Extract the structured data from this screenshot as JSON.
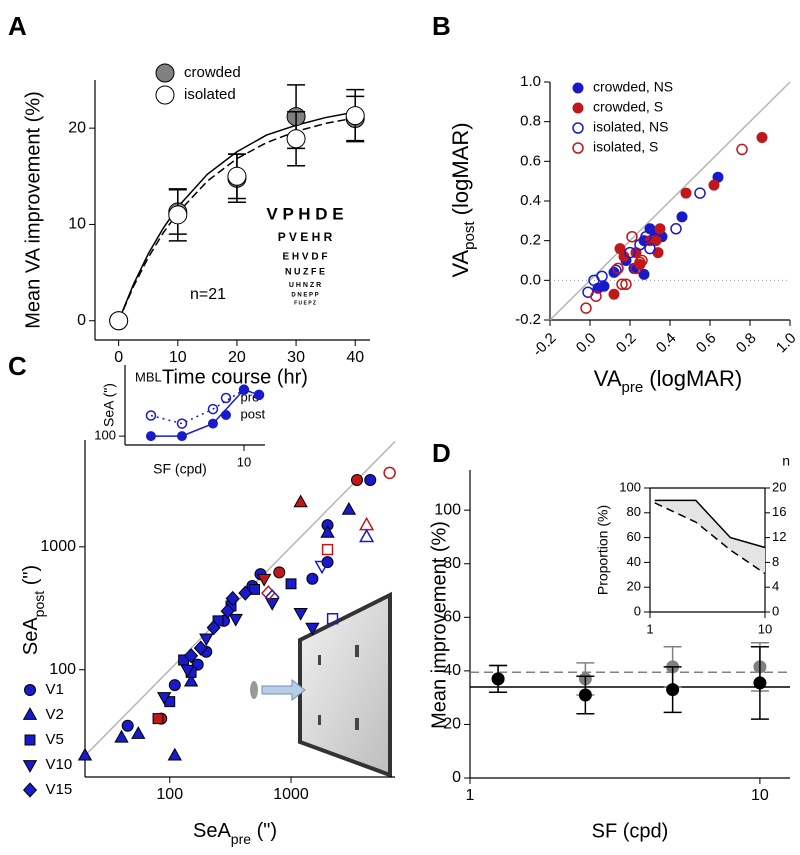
{
  "chart_data": [
    {
      "type": "line",
      "panel": "A",
      "xlabel": "Time course (hr)",
      "ylabel": "Mean VA improvement (%)",
      "x": [
        0,
        10,
        20,
        30,
        40
      ],
      "xlim": [
        -4,
        42.5
      ],
      "ylim": [
        -2,
        25
      ],
      "xticks": [
        0,
        10,
        20,
        30,
        40
      ],
      "yticks": [
        0,
        10,
        20
      ],
      "series": [
        {
          "name": "crowded",
          "color": "#808080",
          "edge_color": "#000000",
          "filled": true,
          "values": [
            0,
            11.3,
            14.8,
            21.2,
            21.0
          ],
          "errors": [
            null,
            2.3,
            2.5,
            3.3,
            2.3
          ]
        },
        {
          "name": "isolated",
          "color": "#ffffff",
          "edge_color": "#000000",
          "filled": true,
          "values": [
            0,
            11.0,
            15.0,
            18.9,
            21.3
          ],
          "errors": [
            null,
            2.7,
            2.3,
            2.8,
            2.7
          ]
        }
      ],
      "fits": [
        {
          "dash": false,
          "x": [
            0,
            2.5,
            5,
            7.5,
            10,
            15,
            20,
            25,
            30,
            35,
            40
          ],
          "values": [
            0,
            3.77,
            6.94,
            9.57,
            11.81,
            15.21,
            17.55,
            19.28,
            20.3,
            21.1,
            21.68
          ]
        },
        {
          "dash": true,
          "x": [
            0,
            2.5,
            5,
            7.5,
            10,
            15,
            20,
            25,
            30,
            35,
            40
          ],
          "values": [
            0,
            3.55,
            6.56,
            9.09,
            11.21,
            14.5,
            16.84,
            18.49,
            19.66,
            20.49,
            21.07
          ]
        }
      ],
      "annotation": "n=21",
      "eye_chart": [
        "V P H D E",
        "P V E H R",
        "E H V D F",
        "N U Z F E",
        "U H N Z R",
        "D N E P P",
        "F U E P Z"
      ]
    },
    {
      "type": "scatter",
      "panel": "B",
      "xlabel": {
        "text": "VA",
        "sub": "pre",
        "suffix": " (logMAR)"
      },
      "ylabel": {
        "text": "VA",
        "sub": "post",
        "suffix": " (logMAR)"
      },
      "xlim": [
        -0.2,
        1.0
      ],
      "ylim": [
        -0.2,
        1.0
      ],
      "xticks": [
        -0.2,
        {
          "value": 0,
          "label": "0.0"
        },
        0.2,
        0.4,
        0.6,
        0.8,
        {
          "value": 1,
          "label": "1.0"
        }
      ],
      "yticks": [
        -0.2,
        {
          "value": 0,
          "label": "0.0"
        },
        0.2,
        0.4,
        0.6,
        0.8,
        {
          "value": 1,
          "label": "1.0"
        }
      ],
      "identity_line": true,
      "reference_lines": [
        {
          "value": 0,
          "style": "dotted"
        }
      ],
      "series": [
        {
          "name": "crowded, NS",
          "color": "#1a1acd",
          "filled": true,
          "x": [
            0.04,
            0.07,
            0.12,
            0.18,
            0.22,
            0.27,
            0.27,
            0.3,
            0.33,
            0.36,
            0.46,
            0.64
          ],
          "values": [
            -0.04,
            -0.03,
            0.04,
            0.1,
            0.06,
            0.2,
            0.03,
            0.26,
            0.24,
            0.22,
            0.32,
            0.52
          ]
        },
        {
          "name": "crowded, S",
          "color": "#c0171a",
          "filled": true,
          "x": [
            0.12,
            0.15,
            0.17,
            0.23,
            0.25,
            0.3,
            0.33,
            0.34,
            0.35,
            0.48,
            0.62,
            0.86
          ],
          "values": [
            -0.07,
            0.16,
            0.12,
            0.14,
            0.08,
            0.2,
            0.2,
            0.14,
            0.26,
            0.44,
            0.48,
            0.72
          ]
        },
        {
          "name": "isolated, NS",
          "color": "#1a1acd",
          "filled": false,
          "x": [
            -0.01,
            0.02,
            0.06,
            0.13,
            0.2,
            0.25,
            0.28,
            0.3,
            0.43,
            0.55
          ],
          "values": [
            -0.06,
            0.0,
            0.02,
            0.05,
            0.14,
            0.18,
            0.22,
            0.16,
            0.26,
            0.44
          ]
        },
        {
          "name": "isolated, S",
          "color": "#c0171a",
          "filled": false,
          "x": [
            -0.02,
            0.03,
            0.14,
            0.16,
            0.18,
            0.21,
            0.23,
            0.25,
            0.26,
            0.76
          ],
          "values": [
            -0.14,
            -0.08,
            0.06,
            -0.02,
            -0.02,
            0.22,
            0.06,
            0.09,
            0.1,
            0.66
          ]
        }
      ]
    },
    {
      "type": "scatter",
      "panel": "C",
      "xlabel": {
        "text": "SeA",
        "sub": "pre",
        "suffix": " (\")"
      },
      "ylabel": {
        "text": "SeA",
        "sub": "post",
        "suffix": " (\")"
      },
      "log_x": true,
      "log_y": true,
      "xlim": [
        20,
        7200
      ],
      "ylim": [
        13.4,
        7400
      ],
      "xticks": [
        100,
        1000
      ],
      "yticks": [
        100,
        1000
      ],
      "identity_line": true,
      "series": [
        {
          "name": "V1",
          "marker": "circle",
          "color": "#1a1acd",
          "edge_color": "#000000",
          "x": [
            45,
            85,
            110,
            170,
            200,
            280,
            480,
            560,
            1500,
            2000,
            3500,
            4500,
            6500,
            800,
            2000
          ],
          "values": [
            35,
            40,
            75,
            110,
            140,
            250,
            480,
            600,
            550,
            750,
            3500,
            3500,
            4000,
            620,
            1500
          ],
          "colors": [
            "#1a1acd",
            "#c0171a",
            "#1a1acd",
            "#1a1acd",
            "#1a1acd",
            "#1a1acd",
            "#1a1acd",
            "#1a1acd",
            "#1a1acd",
            "#1a1acd",
            "#c0171a",
            "#1a1acd",
            "#c0171a",
            "#c0171a",
            "#1a1acd"
          ],
          "filled": [
            true,
            true,
            true,
            true,
            true,
            true,
            true,
            true,
            true,
            true,
            true,
            true,
            false,
            true,
            true
          ]
        },
        {
          "name": "V2",
          "marker": "triangle-up",
          "color": "#1a1acd",
          "edge_color": "#000000",
          "x": [
            20,
            40,
            55,
            110,
            150,
            1200,
            2000,
            3000,
            4200,
            4200
          ],
          "values": [
            20,
            28,
            30,
            20,
            80,
            2300,
            1300,
            2000,
            1500,
            1200
          ],
          "colors": [
            "#1a1acd",
            "#1a1acd",
            "#1a1acd",
            "#1a1acd",
            "#1a1acd",
            "#c0171a",
            "#1a1acd",
            "#1a1acd",
            "#c0171a",
            "#1a1acd"
          ],
          "filled": [
            true,
            true,
            true,
            true,
            true,
            true,
            true,
            true,
            false,
            false
          ]
        },
        {
          "name": "V5",
          "marker": "square",
          "color": "#1a1acd",
          "edge_color": "#000000",
          "x": [
            80,
            100,
            130,
            150,
            250,
            320,
            500,
            1000,
            2000,
            2200
          ],
          "values": [
            40,
            55,
            120,
            95,
            250,
            330,
            450,
            500,
            950,
            260
          ],
          "colors": [
            "#c0171a",
            "#1a1acd",
            "#1a1acd",
            "#1a1acd",
            "#1a1acd",
            "#1a1acd",
            "#1a1acd",
            "#1a1acd",
            "#c0171a",
            "#1a1acd"
          ],
          "filled": [
            true,
            true,
            true,
            true,
            true,
            true,
            true,
            true,
            false,
            false
          ]
        },
        {
          "name": "V10",
          "marker": "triangle-down",
          "color": "#1a1acd",
          "edge_color": "#000000",
          "x": [
            90,
            140,
            200,
            350,
            600,
            700,
            1200,
            1500,
            1800
          ],
          "values": [
            60,
            100,
            180,
            260,
            550,
            350,
            290,
            220,
            700
          ],
          "colors": [
            "#1a1acd",
            "#1a1acd",
            "#1a1acd",
            "#1a1acd",
            "#c0171a",
            "#1a1acd",
            "#1a1acd",
            "#1a1acd",
            "#1a1acd"
          ],
          "filled": [
            true,
            true,
            true,
            true,
            true,
            true,
            true,
            true,
            false
          ]
        },
        {
          "name": "V15",
          "marker": "diamond",
          "color": "#1a1acd",
          "edge_color": "#000000",
          "x": [
            150,
            180,
            230,
            300,
            330,
            420,
            650,
            700
          ],
          "values": [
            130,
            150,
            220,
            300,
            380,
            420,
            420,
            390
          ],
          "colors": [
            "#1a1acd",
            "#1a1acd",
            "#1a1acd",
            "#1a1acd",
            "#1a1acd",
            "#1a1acd",
            "#c0171a",
            "#1a1acd"
          ],
          "filled": [
            true,
            true,
            true,
            true,
            true,
            true,
            false,
            false
          ]
        }
      ]
    },
    {
      "type": "line",
      "title": "MBL",
      "xlabel": "SF (cpd)",
      "ylabel": "SeA (\")",
      "log_x": true,
      "log_y": true,
      "xlim": [
        0.7,
        16
      ],
      "ylim": [
        75,
        1000
      ],
      "xticks": [
        10
      ],
      "yticks": [
        100
      ],
      "x": [
        1.25,
        2.5,
        5,
        10,
        14
      ],
      "series": [
        {
          "name": "pre",
          "color": "#1a1acd",
          "filled": false,
          "linestyle": "dotted",
          "values": [
            195,
            150,
            240,
            450,
            380
          ]
        },
        {
          "name": "post",
          "color": "#1a1acd",
          "filled": true,
          "linestyle": "solid",
          "values": [
            100,
            100,
            150,
            450,
            380
          ]
        }
      ]
    },
    {
      "type": "line",
      "panel": "D",
      "xlabel": "SF (cpd)",
      "ylabel": "Mean improvement (%)",
      "log_x": true,
      "xlim": [
        1,
        12.7
      ],
      "ylim": [
        0,
        115
      ],
      "xticks": [
        1,
        10
      ],
      "yticks": [
        0,
        20,
        40,
        60,
        80,
        100
      ],
      "x": [
        1.25,
        2.5,
        5,
        10
      ],
      "mean_lines": [
        {
          "value": 34,
          "color": "#000000",
          "dash": false
        },
        {
          "value": 39.5,
          "color": "#808080",
          "dash": true
        }
      ],
      "series": [
        {
          "color": "#808080",
          "filled": true,
          "values": [
            37,
            37,
            41.5,
            41.5
          ],
          "errors": [
            5,
            6,
            7.5,
            9
          ]
        },
        {
          "color": "#000000",
          "filled": true,
          "values": [
            37,
            31,
            33,
            35.5
          ],
          "errors": [
            5,
            7,
            8.5,
            13.5
          ]
        }
      ]
    },
    {
      "type": "line",
      "ylabel": "Proportion (%)",
      "y2label": "n",
      "log_x": true,
      "xlim": [
        1,
        10
      ],
      "ylim": [
        0,
        100
      ],
      "y2lim": [
        0,
        20
      ],
      "xticks": [
        1,
        10
      ],
      "yticks": [
        0,
        20,
        40,
        60,
        80,
        100
      ],
      "y2ticks": [
        0,
        4,
        8,
        12,
        16,
        20
      ],
      "x": [
        1.1,
        2.5,
        5,
        10
      ],
      "fill_between": "#e4e4e4",
      "series": [
        {
          "color": "#000000",
          "marker": "none",
          "linestyle": "solid",
          "values": [
            90,
            90,
            60,
            52
          ]
        },
        {
          "color": "#000000",
          "marker": "none",
          "linestyle": "dashed",
          "axis": "y2",
          "values": [
            17.6,
            14.5,
            10,
            6.2
          ]
        }
      ]
    }
  ]
}
